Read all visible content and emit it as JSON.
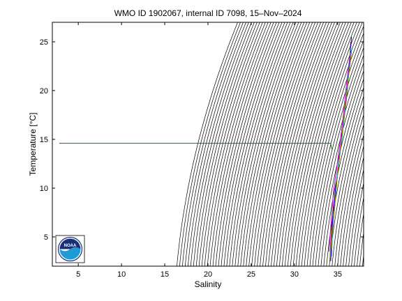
{
  "chart_data": {
    "type": "line",
    "title": "WMO ID 1902067, internal ID 7098, 15–Nov–2024",
    "xlabel": "Salinity",
    "ylabel": "Temperature [°C]",
    "xlim": [
      2,
      38
    ],
    "ylim": [
      2,
      27
    ],
    "xticks": [
      5,
      10,
      15,
      20,
      25,
      30,
      35
    ],
    "yticks": [
      5,
      10,
      15,
      20,
      25
    ],
    "grid": false,
    "density_isopleths": {
      "color": "#000000",
      "sigma_min": 14,
      "sigma_max": 32,
      "step": 0.25
    },
    "series": [
      {
        "color": "#008000",
        "x": [
          2.8,
          34.2,
          34.3
        ],
        "y": [
          14.6,
          14.6,
          14.0
        ]
      },
      {
        "color": "#aa2222",
        "x": [
          34.1,
          34.2,
          34.4,
          34.8,
          35.2,
          35.6,
          36.0,
          36.3,
          36.5
        ],
        "y": [
          2.6,
          4.5,
          7.0,
          10.0,
          13.0,
          16.0,
          19.0,
          22.0,
          25.0
        ]
      },
      {
        "color": "#0000cc",
        "x": [
          34.2,
          34.3,
          34.5,
          34.9,
          35.3,
          35.7,
          36.1,
          36.4,
          36.6
        ],
        "y": [
          2.5,
          5.0,
          8.0,
          11.0,
          14.0,
          17.0,
          20.0,
          23.0,
          25.5
        ]
      },
      {
        "color": "#00aaaa",
        "x": [
          34.3,
          34.4,
          34.7,
          35.0,
          35.5,
          35.9,
          36.2,
          36.5
        ],
        "y": [
          3.0,
          5.5,
          8.5,
          12.0,
          15.0,
          18.5,
          21.5,
          24.5
        ]
      },
      {
        "color": "#cc00cc",
        "x": [
          34.0,
          34.2,
          34.5,
          35.1,
          35.6,
          36.0,
          36.4
        ],
        "y": [
          3.5,
          6.0,
          9.5,
          13.5,
          17.0,
          20.5,
          23.5
        ]
      },
      {
        "color": "#888800",
        "x": [
          34.1,
          34.3,
          34.6,
          35.0,
          35.4,
          35.8,
          36.2,
          36.6
        ],
        "y": [
          2.8,
          4.8,
          7.5,
          11.5,
          14.5,
          18.0,
          21.0,
          24.0
        ]
      }
    ]
  },
  "logo": {
    "text": "NOAA",
    "colors": {
      "ring": "#ffffff",
      "sky": "#1a2f7a",
      "water": "#1e9bd7"
    }
  }
}
